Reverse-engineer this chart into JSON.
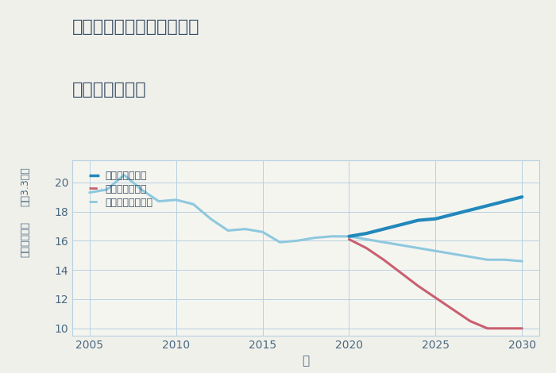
{
  "title_line1": "三重県松阪市嬉野八田町の",
  "title_line2": "土地の価格推移",
  "xlabel": "年",
  "ylabel_top": "単価（万円）",
  "ylabel_bottom": "坪（3.3㎡）",
  "ylim": [
    9.5,
    21.5
  ],
  "xlim": [
    2004,
    2031
  ],
  "yticks": [
    10,
    12,
    14,
    16,
    18,
    20
  ],
  "xticks": [
    2005,
    2010,
    2015,
    2020,
    2025,
    2030
  ],
  "background_color": "#f0f0eb",
  "plot_background": "#f5f5f0",
  "grid_color": "#b8d0e0",
  "normal_color": "#8ec8de",
  "good_color": "#2288bb",
  "bad_color": "#c86070",
  "normal_x": [
    2005,
    2006,
    2007,
    2008,
    2009,
    2010,
    2011,
    2012,
    2013,
    2014,
    2015,
    2016,
    2017,
    2018,
    2019,
    2020,
    2021,
    2022,
    2023,
    2024,
    2025,
    2026,
    2027,
    2028,
    2029,
    2030
  ],
  "normal_y": [
    19.3,
    19.5,
    20.5,
    19.5,
    18.7,
    18.8,
    18.5,
    17.5,
    16.7,
    16.8,
    16.6,
    15.9,
    16.0,
    16.2,
    16.3,
    16.3,
    16.1,
    15.9,
    15.7,
    15.5,
    15.3,
    15.1,
    14.9,
    14.7,
    14.7,
    14.6
  ],
  "good_x": [
    2020,
    2021,
    2022,
    2023,
    2024,
    2025,
    2026,
    2027,
    2028,
    2029,
    2030
  ],
  "good_y": [
    16.3,
    16.5,
    16.8,
    17.1,
    17.4,
    17.5,
    17.8,
    18.1,
    18.4,
    18.7,
    19.0
  ],
  "bad_x": [
    2020,
    2021,
    2022,
    2023,
    2024,
    2025,
    2026,
    2027,
    2028,
    2029,
    2030
  ],
  "bad_y": [
    16.1,
    15.5,
    14.7,
    13.8,
    12.9,
    12.1,
    11.3,
    10.5,
    10.0,
    10.0,
    10.0
  ],
  "legend_good": "グッドシナリオ",
  "legend_bad": "バッドシナリオ",
  "legend_normal": "ノーマルシナリオ",
  "text_color": "#3a5068",
  "tick_color": "#4a6880"
}
